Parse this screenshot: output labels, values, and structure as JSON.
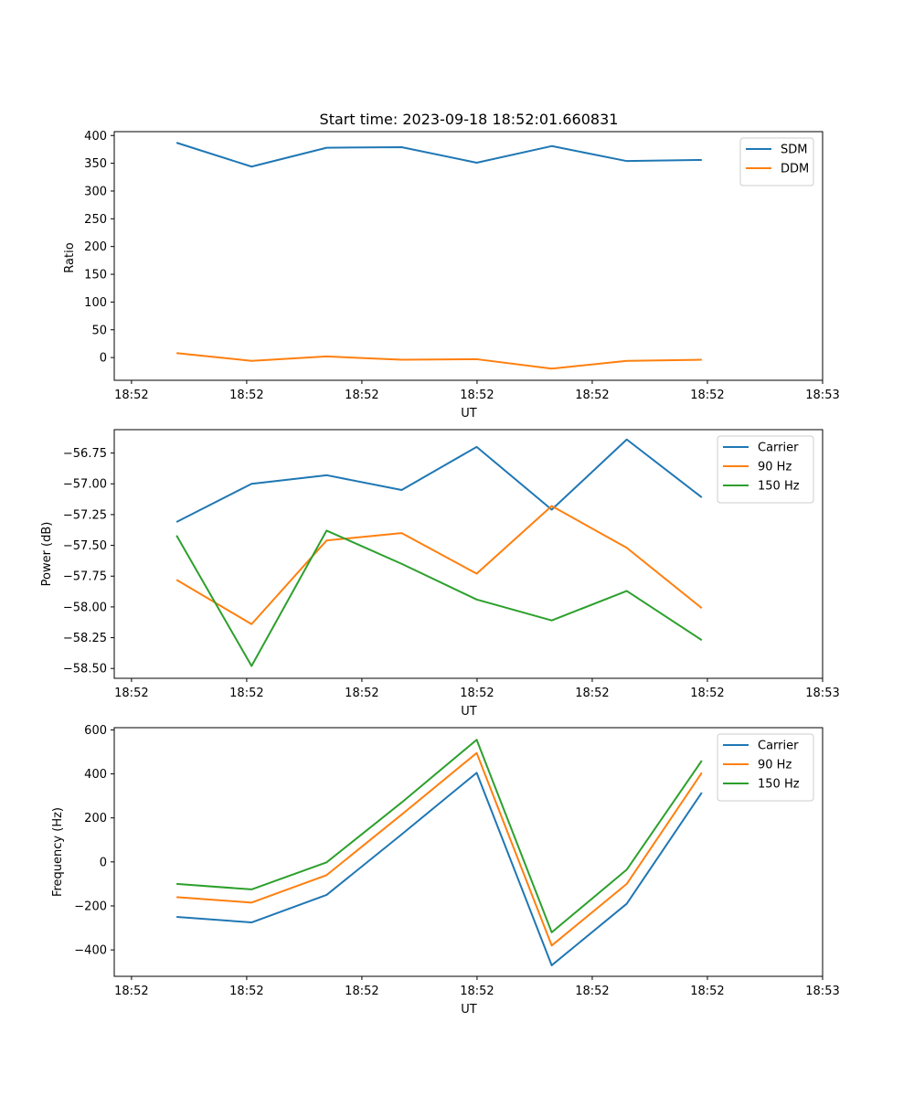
{
  "chart_data": [
    {
      "type": "line",
      "title": "Start time: 2023-09-18 18:52:01.660831",
      "xlabel": "UT",
      "ylabel": "Ratio",
      "x_tick_labels": [
        "18:52",
        "18:52",
        "18:52",
        "18:52",
        "18:52",
        "18:52",
        "18:53"
      ],
      "x": [
        1,
        2,
        3,
        4,
        5,
        6,
        7,
        8
      ],
      "xlim": [
        0.17,
        9.61
      ],
      "x_ticks": [
        0.4,
        1.935,
        3.47,
        5.005,
        6.54,
        8.075,
        9.61
      ],
      "yticks": [
        0,
        50,
        100,
        150,
        200,
        250,
        300,
        350,
        400
      ],
      "ylim": [
        -41,
        407
      ],
      "legend_position": "upper right",
      "series": [
        {
          "name": "SDM",
          "color": "#1f77b4",
          "values": [
            387,
            344,
            378,
            379,
            351,
            381,
            354,
            356
          ]
        },
        {
          "name": "DDM",
          "color": "#ff7f0e",
          "values": [
            8,
            -6,
            2,
            -4,
            -3,
            -20,
            -6,
            -4
          ]
        }
      ]
    },
    {
      "type": "line",
      "title": "",
      "xlabel": "UT",
      "ylabel": "Power (dB)",
      "x_tick_labels": [
        "18:52",
        "18:52",
        "18:52",
        "18:52",
        "18:52",
        "18:52",
        "18:53"
      ],
      "x": [
        1,
        2,
        3,
        4,
        5,
        6,
        7,
        8
      ],
      "xlim": [
        0.17,
        9.61
      ],
      "x_ticks": [
        0.4,
        1.935,
        3.47,
        5.005,
        6.54,
        8.075,
        9.61
      ],
      "yticks": [
        -58.5,
        -58.25,
        -58.0,
        -57.75,
        -57.5,
        -57.25,
        -57.0,
        -56.75
      ],
      "ytick_labels": [
        "−58.50",
        "−58.25",
        "−58.00",
        "−57.75",
        "−57.50",
        "−57.25",
        "−57.00",
        "−56.75"
      ],
      "ylim": [
        -58.58,
        -56.56
      ],
      "legend_position": "upper right",
      "series": [
        {
          "name": "Carrier",
          "color": "#1f77b4",
          "values": [
            -57.31,
            -57.0,
            -56.93,
            -57.05,
            -56.7,
            -57.21,
            -56.64,
            -57.11
          ]
        },
        {
          "name": "90 Hz",
          "color": "#ff7f0e",
          "values": [
            -57.78,
            -58.14,
            -57.46,
            -57.4,
            -57.73,
            -57.18,
            -57.52,
            -58.01
          ]
        },
        {
          "name": "150 Hz",
          "color": "#2ca02c",
          "values": [
            -57.42,
            -58.48,
            -57.38,
            -57.65,
            -57.94,
            -58.11,
            -57.87,
            -58.27
          ]
        }
      ]
    },
    {
      "type": "line",
      "title": "",
      "xlabel": "UT",
      "ylabel": "Frequency (Hz)",
      "x_tick_labels": [
        "18:52",
        "18:52",
        "18:52",
        "18:52",
        "18:52",
        "18:52",
        "18:53"
      ],
      "x": [
        1,
        2,
        3,
        4,
        5,
        6,
        7,
        8
      ],
      "xlim": [
        0.17,
        9.61
      ],
      "x_ticks": [
        0.4,
        1.935,
        3.47,
        5.005,
        6.54,
        8.075,
        9.61
      ],
      "yticks": [
        -400,
        -200,
        0,
        200,
        400,
        600
      ],
      "ytick_labels": [
        "−400",
        "−200",
        "0",
        "200",
        "400",
        "600"
      ],
      "ylim": [
        -520,
        610
      ],
      "legend_position": "upper right",
      "series": [
        {
          "name": "Carrier",
          "color": "#1f77b4",
          "values": [
            -250,
            -275,
            -150,
            125,
            405,
            -470,
            -190,
            315
          ]
        },
        {
          "name": "90 Hz",
          "color": "#ff7f0e",
          "values": [
            -160,
            -185,
            -60,
            215,
            495,
            -380,
            -100,
            405
          ]
        },
        {
          "name": "150 Hz",
          "color": "#2ca02c",
          "values": [
            -100,
            -125,
            -2,
            270,
            555,
            -320,
            -35,
            460
          ]
        }
      ]
    }
  ]
}
